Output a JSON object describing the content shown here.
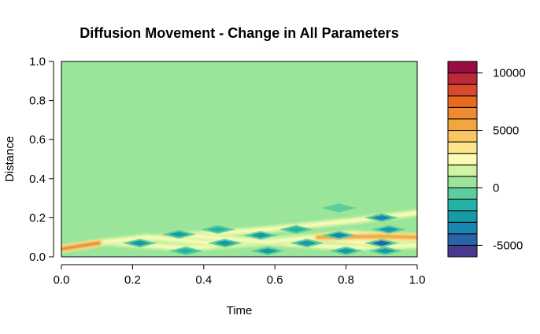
{
  "chart_data": {
    "type": "heatmap",
    "title": "Diffusion Movement - Change in All Parameters",
    "xlabel": "Time",
    "ylabel": "Distance",
    "xlim": [
      0,
      1
    ],
    "ylim": [
      0,
      1
    ],
    "x_ticks": [
      "0.0",
      "0.2",
      "0.4",
      "0.6",
      "0.8",
      "1.0"
    ],
    "y_ticks": [
      "0.0",
      "0.2",
      "0.4",
      "0.6",
      "0.8",
      "1.0"
    ],
    "grid": false,
    "legend_position": "right",
    "background_level": 0,
    "colorbar": {
      "ticks": [
        "10000",
        "5000",
        "0",
        "-5000"
      ],
      "tick_values": [
        10000,
        5000,
        0,
        -5000
      ],
      "range": [
        -6000,
        11000
      ],
      "level_boundaries": [
        -6000,
        -5000,
        -4000,
        -3000,
        -2000,
        -1000,
        0,
        1000,
        2000,
        3000,
        4000,
        5000,
        6000,
        7000,
        8000,
        9000,
        10000,
        11000
      ],
      "colors": [
        "#4a3a8f",
        "#2a64a8",
        "#1a86b0",
        "#179aa8",
        "#22b3a6",
        "#5ccd9c",
        "#9be59a",
        "#cff4a4",
        "#fbfbb8",
        "#fde58c",
        "#f8c762",
        "#f3a63e",
        "#ee8a2f",
        "#e86a1e",
        "#d84a2a",
        "#bb2a38",
        "#9a0c44"
      ]
    },
    "features": {
      "band_ridges": [
        {
          "x": [
            0.0,
            0.12
          ],
          "y": [
            0.04,
            0.075
          ],
          "level": 6000
        },
        {
          "x": [
            0.12,
            0.35,
            0.58,
            0.82,
            1.0
          ],
          "y": [
            0.075,
            0.11,
            0.14,
            0.185,
            0.225
          ],
          "level": 2500
        },
        {
          "x": [
            0.12,
            0.35,
            0.58,
            0.82,
            1.0
          ],
          "y": [
            0.075,
            0.045,
            0.075,
            0.045,
            0.075
          ],
          "level": 2500
        },
        {
          "x": [
            0.12,
            0.24,
            0.46,
            0.7,
            0.94,
            1.0
          ],
          "y": [
            0.075,
            0.1,
            0.065,
            0.1,
            0.055,
            0.06
          ],
          "level": 2500
        },
        {
          "x": [
            0.35,
            0.58,
            0.82,
            1.0
          ],
          "y": [
            0.11,
            0.075,
            0.12,
            0.09
          ],
          "level": 2500
        },
        {
          "x": [
            0.72,
            0.9,
            1.0
          ],
          "y": [
            0.1,
            0.105,
            0.1
          ],
          "level": 5500
        }
      ],
      "blue_spots": [
        {
          "x": 0.22,
          "y": 0.07,
          "level": -2500
        },
        {
          "x": 0.33,
          "y": 0.115,
          "level": -2500
        },
        {
          "x": 0.35,
          "y": 0.03,
          "level": -2000
        },
        {
          "x": 0.44,
          "y": 0.14,
          "level": -1500
        },
        {
          "x": 0.46,
          "y": 0.07,
          "level": -2500
        },
        {
          "x": 0.56,
          "y": 0.11,
          "level": -3000
        },
        {
          "x": 0.58,
          "y": 0.03,
          "level": -2500
        },
        {
          "x": 0.66,
          "y": 0.14,
          "level": -2000
        },
        {
          "x": 0.69,
          "y": 0.07,
          "level": -3000
        },
        {
          "x": 0.78,
          "y": 0.11,
          "level": -4000
        },
        {
          "x": 0.8,
          "y": 0.03,
          "level": -3000
        },
        {
          "x": 0.78,
          "y": 0.25,
          "level": -1000
        },
        {
          "x": 0.9,
          "y": 0.07,
          "level": -5000
        },
        {
          "x": 0.9,
          "y": 0.2,
          "level": -3500
        },
        {
          "x": 0.92,
          "y": 0.14,
          "level": -2500
        },
        {
          "x": 0.91,
          "y": 0.03,
          "level": -3000
        }
      ]
    }
  }
}
